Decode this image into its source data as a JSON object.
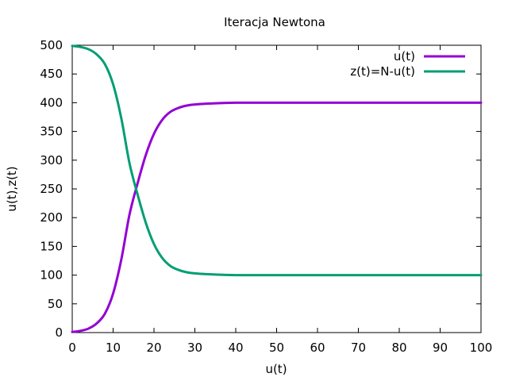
{
  "chart_data": {
    "type": "line",
    "title": "Iteracja Newtona",
    "xlabel": "u(t)",
    "ylabel": "u(t),z(t)",
    "xlim": [
      0,
      100
    ],
    "ylim": [
      0,
      500
    ],
    "xticks": [
      0,
      10,
      20,
      30,
      40,
      50,
      60,
      70,
      80,
      90,
      100
    ],
    "yticks": [
      0,
      50,
      100,
      150,
      200,
      250,
      300,
      350,
      400,
      450,
      500
    ],
    "legend_position": "top-right",
    "grid": false,
    "series": [
      {
        "name": "u(t)",
        "color": "#9400d3",
        "x": [
          0,
          2,
          4,
          6,
          8,
          10,
          12,
          14,
          16,
          18,
          20,
          22,
          24,
          26,
          28,
          30,
          35,
          40,
          50,
          60,
          70,
          80,
          90,
          100
        ],
        "y": [
          1,
          3,
          7,
          16,
          33,
          68,
          127,
          205,
          260,
          309,
          346,
          370,
          384,
          391,
          395,
          397,
          399,
          400,
          400,
          400,
          400,
          400,
          400,
          400
        ]
      },
      {
        "name": "z(t)=N-u(t)",
        "color": "#009e73",
        "x": [
          0,
          2,
          4,
          6,
          8,
          10,
          12,
          14,
          16,
          18,
          20,
          22,
          24,
          26,
          28,
          30,
          35,
          40,
          50,
          60,
          70,
          80,
          90,
          100
        ],
        "y": [
          499,
          497,
          493,
          484,
          467,
          432,
          373,
          295,
          240,
          191,
          154,
          130,
          116,
          109,
          105,
          103,
          101,
          100,
          100,
          100,
          100,
          100,
          100,
          100
        ]
      }
    ]
  }
}
